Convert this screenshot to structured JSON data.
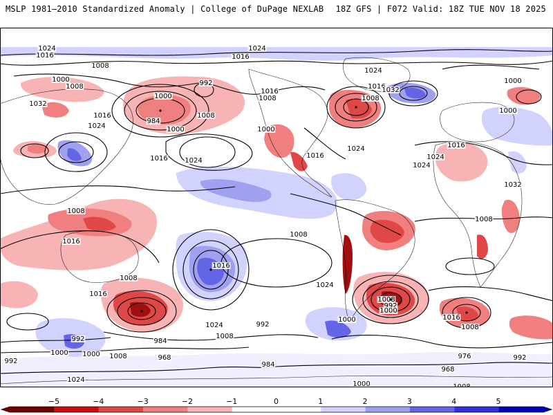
{
  "header": {
    "title_left": "MSLP 1981–2010 Standardized Anomaly | College of DuPage NEXLAB",
    "title_right": "18Z GFS | F072 Valid: 18Z TUE NOV 18 2025"
  },
  "colorbar": {
    "ticks": [
      "−5",
      "−4",
      "−3",
      "−2",
      "−1",
      "0",
      "1",
      "2",
      "3",
      "4",
      "5"
    ],
    "tick_values": [
      -5,
      -4,
      -3,
      -2,
      -1,
      0,
      1,
      2,
      3,
      4,
      5
    ],
    "colors": [
      "#6e0000",
      "#c80f0f",
      "#e04848",
      "#f08080",
      "#f8b4b4",
      "#ffffff",
      "#ffffff",
      "#d2d2ff",
      "#a0a0f0",
      "#6464e6",
      "#3232dc",
      "#0000b4"
    ]
  },
  "isobar_labels": [
    "1024",
    "1016",
    "1008",
    "1000",
    "1008",
    "1032",
    "1016",
    "1024",
    "1024",
    "1016",
    "992",
    "1000",
    "984",
    "1000",
    "1008",
    "1016",
    "1024",
    "1024",
    "1008",
    "1016",
    "1024",
    "1032",
    "1016",
    "1008",
    "1000",
    "1016",
    "1024",
    "1000",
    "1016",
    "1008",
    "1008",
    "1016",
    "1008",
    "1008",
    "1016",
    "1016",
    "1024",
    "992",
    "984",
    "1024",
    "1008",
    "992",
    "968",
    "1008",
    "1000",
    "992",
    "1000",
    "984",
    "992",
    "1008",
    "1000",
    "1000",
    "1016",
    "1008",
    "976",
    "968",
    "992",
    "1008",
    "1000",
    "1024",
    "1000",
    "1032",
    "1024",
    "1016"
  ],
  "map_colors": {
    "ocean": "#ffffff",
    "strong_low": "#e04848",
    "weak_low": "#f8b4b4",
    "mod_low": "#f08080",
    "core_low": "#a01010",
    "weak_high": "#d2d2ff",
    "mod_high": "#a0a0f0",
    "strong_high": "#6464e6"
  }
}
